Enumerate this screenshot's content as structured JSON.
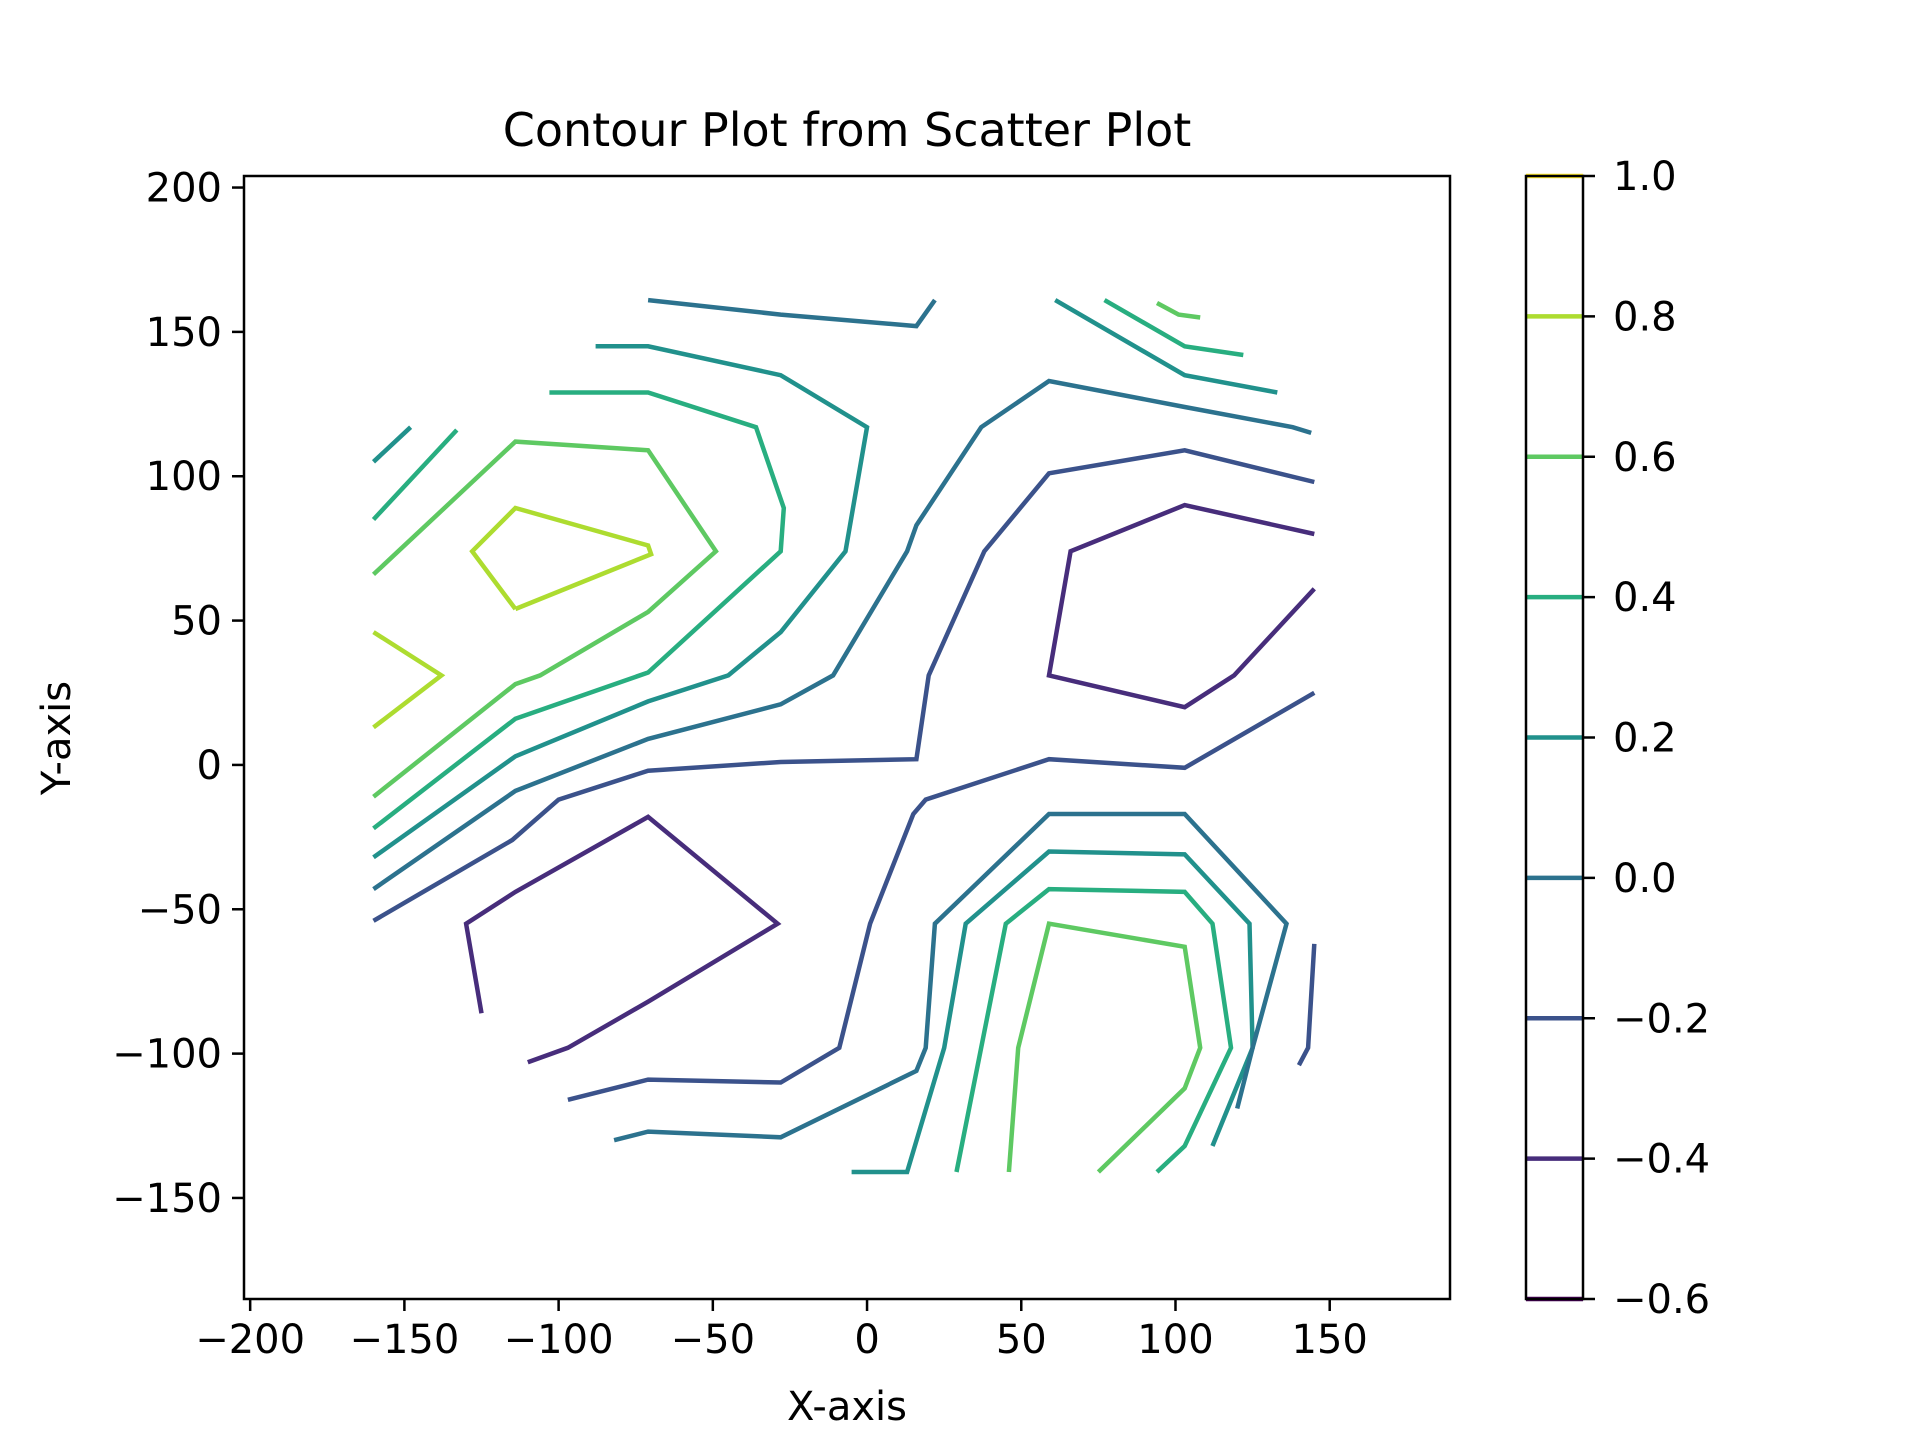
{
  "chart_data": {
    "type": "contour",
    "title": "Contour Plot from Scatter Plot",
    "xlabel": "X-axis",
    "ylabel": "Y-axis",
    "xlim": [
      -202,
      189
    ],
    "ylim": [
      -185,
      204
    ],
    "xticks": [
      -200,
      -150,
      -100,
      -50,
      0,
      50,
      100,
      150
    ],
    "xtick_labels": [
      "−200",
      "−150",
      "−100",
      "−50",
      "0",
      "50",
      "100",
      "150"
    ],
    "yticks": [
      200,
      150,
      100,
      50,
      0,
      -50,
      -100,
      -150
    ],
    "ytick_labels": [
      "200",
      "150",
      "100",
      "50",
      "0",
      "−50",
      "−100",
      "−150"
    ],
    "grid": false,
    "colorbar": {
      "range": [
        -0.6,
        1.0
      ],
      "ticks": [
        1.0,
        0.8,
        0.6,
        0.4,
        0.2,
        0.0,
        -0.2,
        -0.4,
        -0.6
      ],
      "tick_labels": [
        "1.0",
        "0.8",
        "0.6",
        "0.4",
        "0.2",
        "0.0",
        "−0.2",
        "−0.4",
        "−0.6"
      ],
      "colors": [
        "#fde725",
        "#addc30",
        "#5ec962",
        "#28ae80",
        "#21918c",
        "#2c728e",
        "#3b528b",
        "#472d7b",
        "#440154"
      ]
    },
    "levels": [
      {
        "value": 0.8,
        "color": "#addc30",
        "paths": [
          [
            [
              -160,
              46
            ],
            [
              -138,
              31
            ],
            [
              -160,
              13
            ]
          ],
          [
            [
              -114,
              54
            ],
            [
              -70,
              73
            ],
            [
              -71,
              76
            ],
            [
              -114,
              89
            ],
            [
              -128,
              74
            ],
            [
              -114,
              54
            ]
          ]
        ]
      },
      {
        "value": 0.6,
        "color": "#5ec962",
        "paths": [
          [
            [
              -160,
              -11
            ],
            [
              -114,
              28
            ],
            [
              -106,
              31
            ],
            [
              -71,
              53
            ],
            [
              -49,
              74
            ],
            [
              -71,
              109
            ],
            [
              -114,
              112
            ],
            [
              -160,
              66
            ]
          ],
          [
            [
              94,
              160
            ],
            [
              101,
              156
            ],
            [
              108,
              155
            ]
          ],
          [
            [
              75,
              -141
            ],
            [
              103,
              -112
            ],
            [
              108,
              -98
            ],
            [
              103,
              -63
            ],
            [
              59,
              -55
            ],
            [
              49,
              -98
            ],
            [
              46,
              -141
            ]
          ]
        ]
      },
      {
        "value": 0.4,
        "color": "#28ae80",
        "paths": [
          [
            [
              -160,
              -22
            ],
            [
              -114,
              16
            ],
            [
              -71,
              32
            ],
            [
              -28,
              74
            ],
            [
              -27,
              89
            ],
            [
              -36,
              117
            ],
            [
              -71,
              129
            ],
            [
              -103,
              129
            ]
          ],
          [
            [
              -160,
              85
            ],
            [
              -133,
              116
            ]
          ],
          [
            [
              77,
              161
            ],
            [
              103,
              145
            ],
            [
              122,
              142
            ]
          ],
          [
            [
              94,
              -141
            ],
            [
              103,
              -132
            ],
            [
              118,
              -98
            ],
            [
              112,
              -55
            ],
            [
              103,
              -44
            ],
            [
              59,
              -43
            ],
            [
              45,
              -55
            ],
            [
              29,
              -141
            ]
          ]
        ]
      },
      {
        "value": 0.2,
        "color": "#21918c",
        "paths": [
          [
            [
              -160,
              -32
            ],
            [
              -114,
              3
            ],
            [
              -71,
              22
            ],
            [
              -45,
              31
            ],
            [
              -28,
              46
            ],
            [
              -7,
              74
            ],
            [
              0,
              117
            ],
            [
              -28,
              135
            ],
            [
              -71,
              145
            ],
            [
              -88,
              145
            ]
          ],
          [
            [
              -160,
              105
            ],
            [
              -148,
              117
            ]
          ],
          [
            [
              61,
              161
            ],
            [
              103,
              135
            ],
            [
              133,
              129
            ]
          ],
          [
            [
              112,
              -132
            ],
            [
              125,
              -98
            ],
            [
              124,
              -55
            ],
            [
              103,
              -31
            ],
            [
              59,
              -30
            ],
            [
              32,
              -55
            ],
            [
              25,
              -98
            ],
            [
              13,
              -141
            ],
            [
              -5,
              -141
            ]
          ]
        ]
      },
      {
        "value": 0.0,
        "color": "#2c728e",
        "paths": [
          [
            [
              -160,
              -43
            ],
            [
              -114,
              -9
            ],
            [
              -71,
              9
            ],
            [
              -28,
              21
            ],
            [
              -11,
              31
            ],
            [
              13,
              74
            ],
            [
              16,
              83
            ],
            [
              37,
              117
            ],
            [
              59,
              133
            ],
            [
              103,
              124
            ],
            [
              138,
              117
            ],
            [
              144,
              115
            ]
          ],
          [
            [
              -71,
              161
            ],
            [
              -28,
              156
            ],
            [
              16,
              152
            ],
            [
              22,
              161
            ]
          ],
          [
            [
              -82,
              -130
            ],
            [
              -71,
              -127
            ],
            [
              -28,
              -129
            ],
            [
              16,
              -106
            ],
            [
              19,
              -98
            ],
            [
              22,
              -55
            ],
            [
              59,
              -17
            ],
            [
              103,
              -17
            ],
            [
              136,
              -55
            ],
            [
              125,
              -98
            ],
            [
              120,
              -119
            ]
          ]
        ]
      },
      {
        "value": -0.2,
        "color": "#3b528b",
        "paths": [
          [
            [
              -160,
              -54
            ],
            [
              -115,
              -26
            ],
            [
              -100,
              -12
            ],
            [
              -71,
              -2
            ],
            [
              -28,
              1
            ],
            [
              16,
              2
            ],
            [
              20,
              31
            ],
            [
              38,
              74
            ],
            [
              59,
              101
            ],
            [
              103,
              109
            ],
            [
              145,
              98
            ]
          ],
          [
            [
              -97,
              -116
            ],
            [
              -71,
              -109
            ],
            [
              -28,
              -110
            ],
            [
              -9,
              -98
            ],
            [
              1,
              -55
            ],
            [
              15,
              -17
            ],
            [
              19,
              -12
            ],
            [
              59,
              2
            ],
            [
              103,
              -1
            ],
            [
              145,
              25
            ]
          ],
          [
            [
              145,
              -62
            ],
            [
              143,
              -98
            ],
            [
              140,
              -104
            ]
          ]
        ]
      },
      {
        "value": -0.4,
        "color": "#472d7b",
        "paths": [
          [
            [
              -125,
              -86
            ],
            [
              -130,
              -55
            ],
            [
              -114,
              -44
            ],
            [
              -71,
              -18
            ],
            [
              -29,
              -55
            ],
            [
              -71,
              -82
            ],
            [
              -97,
              -98
            ],
            [
              -110,
              -103
            ]
          ],
          [
            [
              145,
              80
            ],
            [
              103,
              90
            ],
            [
              66,
              74
            ],
            [
              59,
              31
            ],
            [
              103,
              20
            ],
            [
              119,
              31
            ],
            [
              145,
              61
            ]
          ]
        ]
      }
    ]
  }
}
